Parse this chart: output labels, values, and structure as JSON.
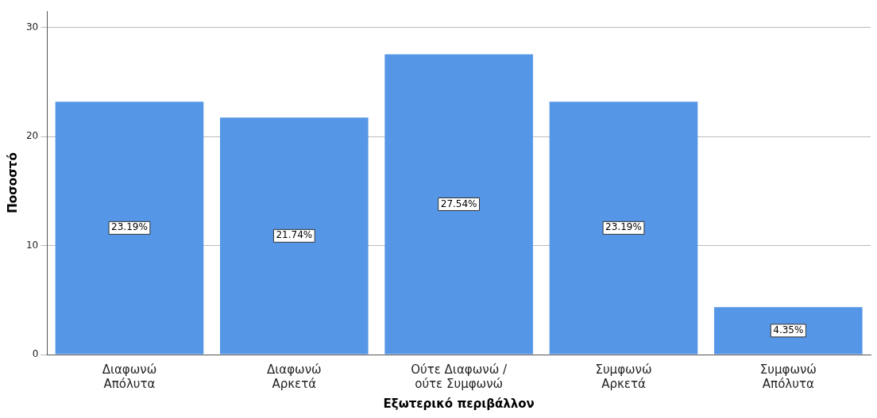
{
  "chart_data": {
    "type": "bar",
    "xlabel": "Εξωτερικό περιβάλλον",
    "ylabel": "Ποσοστό",
    "categories": [
      "Διαφωνώ\nΑπόλυτα",
      "Διαφωνώ\nΑρκετά",
      "Ούτε Διαφωνώ /\nούτε Συμφωνώ",
      "Συμφωνώ\nΑρκετά",
      "Συμφωνώ\nΑπόλυτα"
    ],
    "values": [
      23.19,
      21.74,
      27.54,
      23.19,
      4.35
    ],
    "value_labels": [
      "23.19%",
      "21.74%",
      "27.54%",
      "23.19%",
      "4.35%"
    ],
    "color": "#5596e6",
    "ylim": [
      0,
      31.5
    ],
    "yticks": [
      0,
      10,
      20,
      30
    ],
    "grid": "y",
    "legend": false
  }
}
